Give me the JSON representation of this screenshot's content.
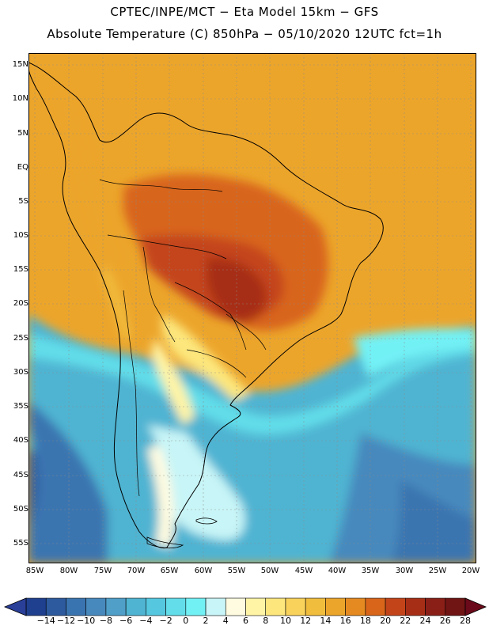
{
  "title": {
    "line1": "CPTEC/INPE/MCT −  Eta Model 15km − GFS",
    "line2": "Absolute Temperature (C) 850hPa − 05/10/2020 12UTC fct=1h"
  },
  "map": {
    "lat_labels": [
      "15N",
      "10N",
      "5N",
      "EQ",
      "5S",
      "10S",
      "15S",
      "20S",
      "25S",
      "30S",
      "35S",
      "40S",
      "45S",
      "50S",
      "55S"
    ],
    "lon_labels": [
      "85W",
      "80W",
      "75W",
      "70W",
      "65W",
      "60W",
      "55W",
      "50W",
      "45W",
      "40W",
      "35W",
      "30W",
      "25W",
      "20W"
    ]
  },
  "colorbar": {
    "labels": [
      "-14",
      "-12",
      "-10",
      "-8",
      "-6",
      "-4",
      "-2",
      "0",
      "2",
      "4",
      "6",
      "8",
      "10",
      "12",
      "14",
      "16",
      "18",
      "20",
      "22",
      "24",
      "26",
      "28"
    ],
    "colors": [
      "#1f3f8f",
      "#2d5a9e",
      "#3a74b0",
      "#4789bd",
      "#4f9fc9",
      "#4fb4d2",
      "#55c8e0",
      "#62dde9",
      "#72f1f5",
      "#c8f5f7",
      "#fffbe0",
      "#fff4a6",
      "#fde77d",
      "#f8d25a",
      "#f1bd3d",
      "#eca52b",
      "#e58a20",
      "#d8651a",
      "#c4441a",
      "#a72e16",
      "#8a1f18",
      "#701414"
    ],
    "low_color": "#2a3f98",
    "high_color": "#6b0a1a"
  }
}
